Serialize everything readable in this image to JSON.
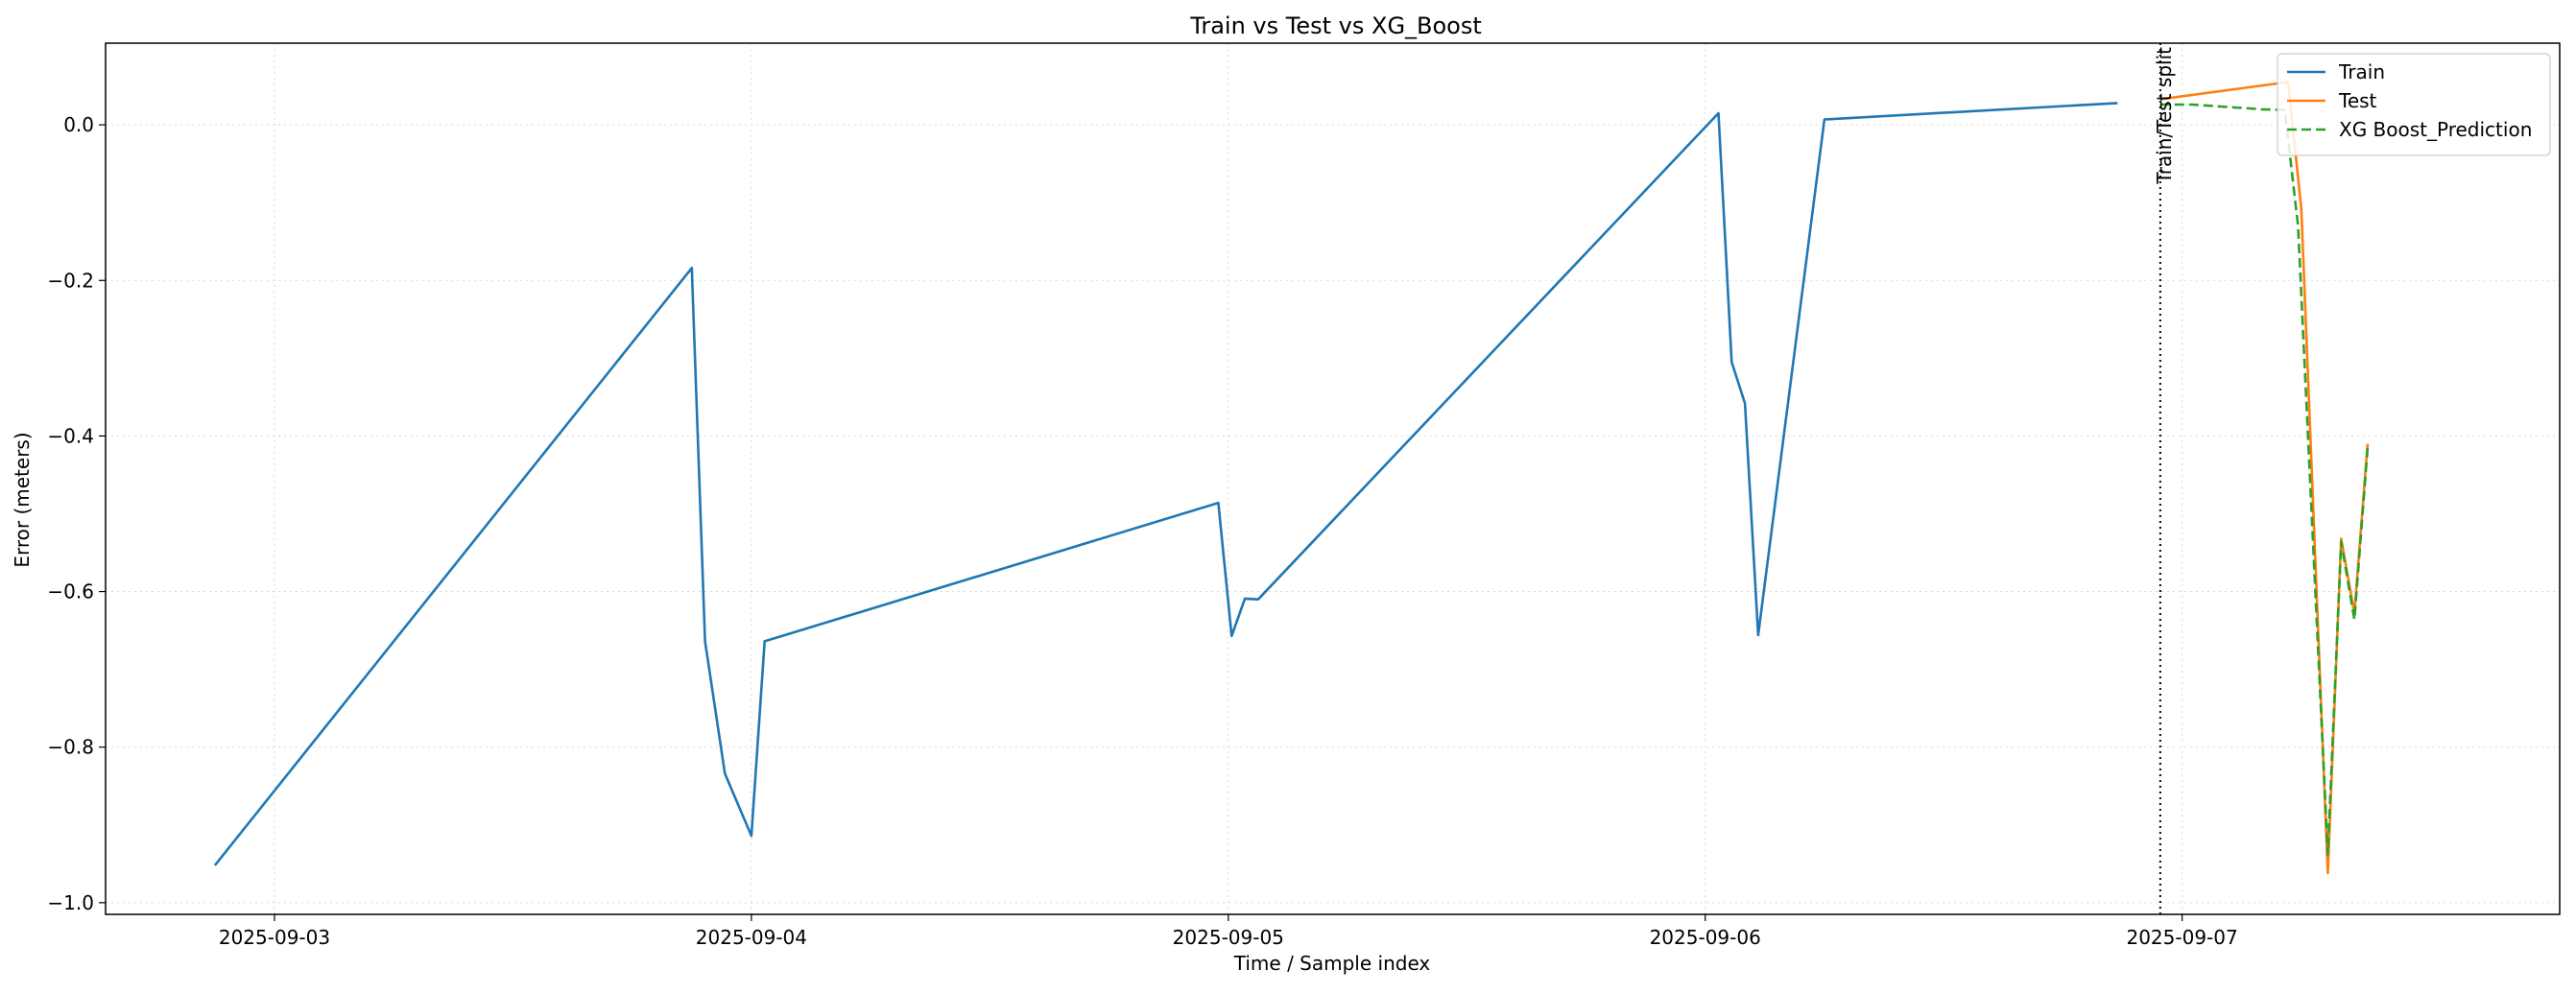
{
  "chart_data": {
    "type": "line",
    "title": "Train vs Test vs XG_Boost",
    "xlabel": "Time / Sample index",
    "ylabel": "Error (meters)",
    "x_axis_type": "datetime",
    "xlim": [
      "2025-09-02T15:30",
      "2025-09-07T19:00"
    ],
    "ylim": [
      -1.015,
      0.105
    ],
    "x_ticks": [
      "2025-09-03",
      "2025-09-04",
      "2025-09-05",
      "2025-09-06",
      "2025-09-07"
    ],
    "y_ticks": [
      0.0,
      -0.2,
      -0.4,
      -0.6,
      -0.8,
      -1.0
    ],
    "y_tick_labels": [
      "0.0",
      "−0.2",
      "−0.4",
      "−0.6",
      "−0.8",
      "−1.0"
    ],
    "grid": true,
    "legend_position": "top-right",
    "annotation": {
      "label": "Train/Test split",
      "x": "2025-09-06T22:54"
    },
    "series": [
      {
        "name": "Train",
        "color": "#1f77b4",
        "style": "solid",
        "points": [
          [
            "2025-09-02T21:00",
            -0.952
          ],
          [
            "2025-09-03T21:00",
            -0.184
          ],
          [
            "2025-09-03T21:40",
            -0.664
          ],
          [
            "2025-09-03T22:40",
            -0.834
          ],
          [
            "2025-09-04T00:00",
            -0.914
          ],
          [
            "2025-09-04T00:40",
            -0.664
          ],
          [
            "2025-09-04T23:30",
            -0.486
          ],
          [
            "2025-09-05T00:10",
            -0.657
          ],
          [
            "2025-09-05T00:50",
            -0.609
          ],
          [
            "2025-09-05T01:30",
            -0.61
          ],
          [
            "2025-09-06T00:40",
            0.015
          ],
          [
            "2025-09-06T01:20",
            -0.305
          ],
          [
            "2025-09-06T02:00",
            -0.358
          ],
          [
            "2025-09-06T02:40",
            -0.656
          ],
          [
            "2025-09-06T06:00",
            0.007
          ],
          [
            "2025-09-06T20:45",
            0.028
          ]
        ]
      },
      {
        "name": "Test",
        "color": "#ff7f0e",
        "style": "solid",
        "points": [
          [
            "2025-09-06T22:54",
            0.033
          ],
          [
            "2025-09-07T05:20",
            0.055
          ],
          [
            "2025-09-07T06:00",
            -0.108
          ],
          [
            "2025-09-07T07:20",
            -0.962
          ],
          [
            "2025-09-07T08:00",
            -0.532
          ],
          [
            "2025-09-07T08:40",
            -0.628
          ],
          [
            "2025-09-07T09:20",
            -0.41
          ]
        ]
      },
      {
        "name": "XG Boost_Prediction",
        "color": "#2ca02c",
        "style": "dashed",
        "points": [
          [
            "2025-09-06T22:54",
            0.026
          ],
          [
            "2025-09-07T00:30",
            0.026
          ],
          [
            "2025-09-07T04:00",
            0.02
          ],
          [
            "2025-09-07T05:10",
            0.019
          ],
          [
            "2025-09-07T05:50",
            -0.13
          ],
          [
            "2025-09-07T07:20",
            -0.938
          ],
          [
            "2025-09-07T08:00",
            -0.536
          ],
          [
            "2025-09-07T08:40",
            -0.636
          ],
          [
            "2025-09-07T09:20",
            -0.415
          ]
        ]
      }
    ]
  }
}
